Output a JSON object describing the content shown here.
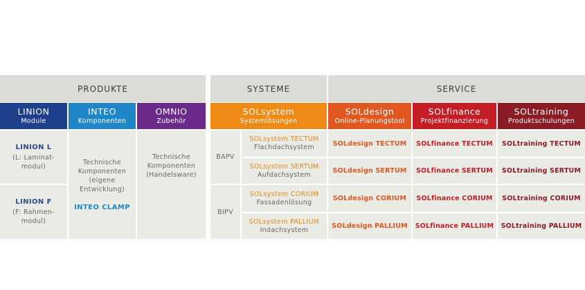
{
  "groups": {
    "produkte": "PRODUKTE",
    "systeme": "SYSTEME",
    "service": "SERVICE"
  },
  "categories": [
    {
      "title": "LINION",
      "subtitle": "Module",
      "color": "#1d3f8c"
    },
    {
      "title": "INTEO",
      "subtitle": "Komponenten",
      "color": "#1f86c8"
    },
    {
      "title": "OMNIO",
      "subtitle": "Zubehör",
      "color": "#6a2a8a"
    },
    {
      "title": "SOLsystem",
      "subtitle": "Systemlösungen",
      "color": "#ef8a16"
    },
    {
      "title": "SOLdesign",
      "subtitle": "Online-Planungstool",
      "color": "#e0581f"
    },
    {
      "title": "SOLfinance",
      "subtitle": "Projektfinanzierung",
      "color": "#c51d25"
    },
    {
      "title": "SOLtraining",
      "subtitle": "Produktschulungen",
      "color": "#8b1c26"
    }
  ],
  "products": {
    "linion_l": {
      "title": "LINION L",
      "line1": "(L: Laminat-",
      "line2": "modul)"
    },
    "linion_f": {
      "title": "LINION F",
      "line1": "(F: Rahmen-",
      "line2": "modul)"
    },
    "inteo": {
      "line1": "Technische",
      "line2": "Komponenten",
      "line3": "(eigene",
      "line4": "Entwicklung)",
      "clamp": "INTEO CLAMP"
    },
    "omnio": {
      "line1": "Technische",
      "line2": "Komponenten",
      "line3": "(Handelsware)"
    }
  },
  "system_types": {
    "bapv": "BAPV",
    "bipv": "BIPV"
  },
  "systems": [
    {
      "name": "SOLsystem TECTUM",
      "desc": "Flachdachsystem"
    },
    {
      "name": "SOLsystem SERTUM",
      "desc": "Aufdachsystem"
    },
    {
      "name": "SOLsystem CORIUM",
      "desc": "Fassadenlösung"
    },
    {
      "name": "SOLsystem PALLIUM",
      "desc": "Indachsystem"
    }
  ],
  "services": [
    [
      "SOLdesign TECTUM",
      "SOLfinance TECTUM",
      "SOLtraining TECTUM"
    ],
    [
      "SOLdesign SERTUM",
      "SOLfinance SERTUM",
      "SOLtraining SERTUM"
    ],
    [
      "SOLdesign CORIUM",
      "SOLfinance CORIUM",
      "SOLtraining CORIUM"
    ],
    [
      "SOLdesign PALLIUM",
      "SOLfinance PALLIUM",
      "SOLtraining PALLIUM"
    ]
  ],
  "service_colors": [
    "#e0581f",
    "#c51d25",
    "#8b1c26"
  ]
}
